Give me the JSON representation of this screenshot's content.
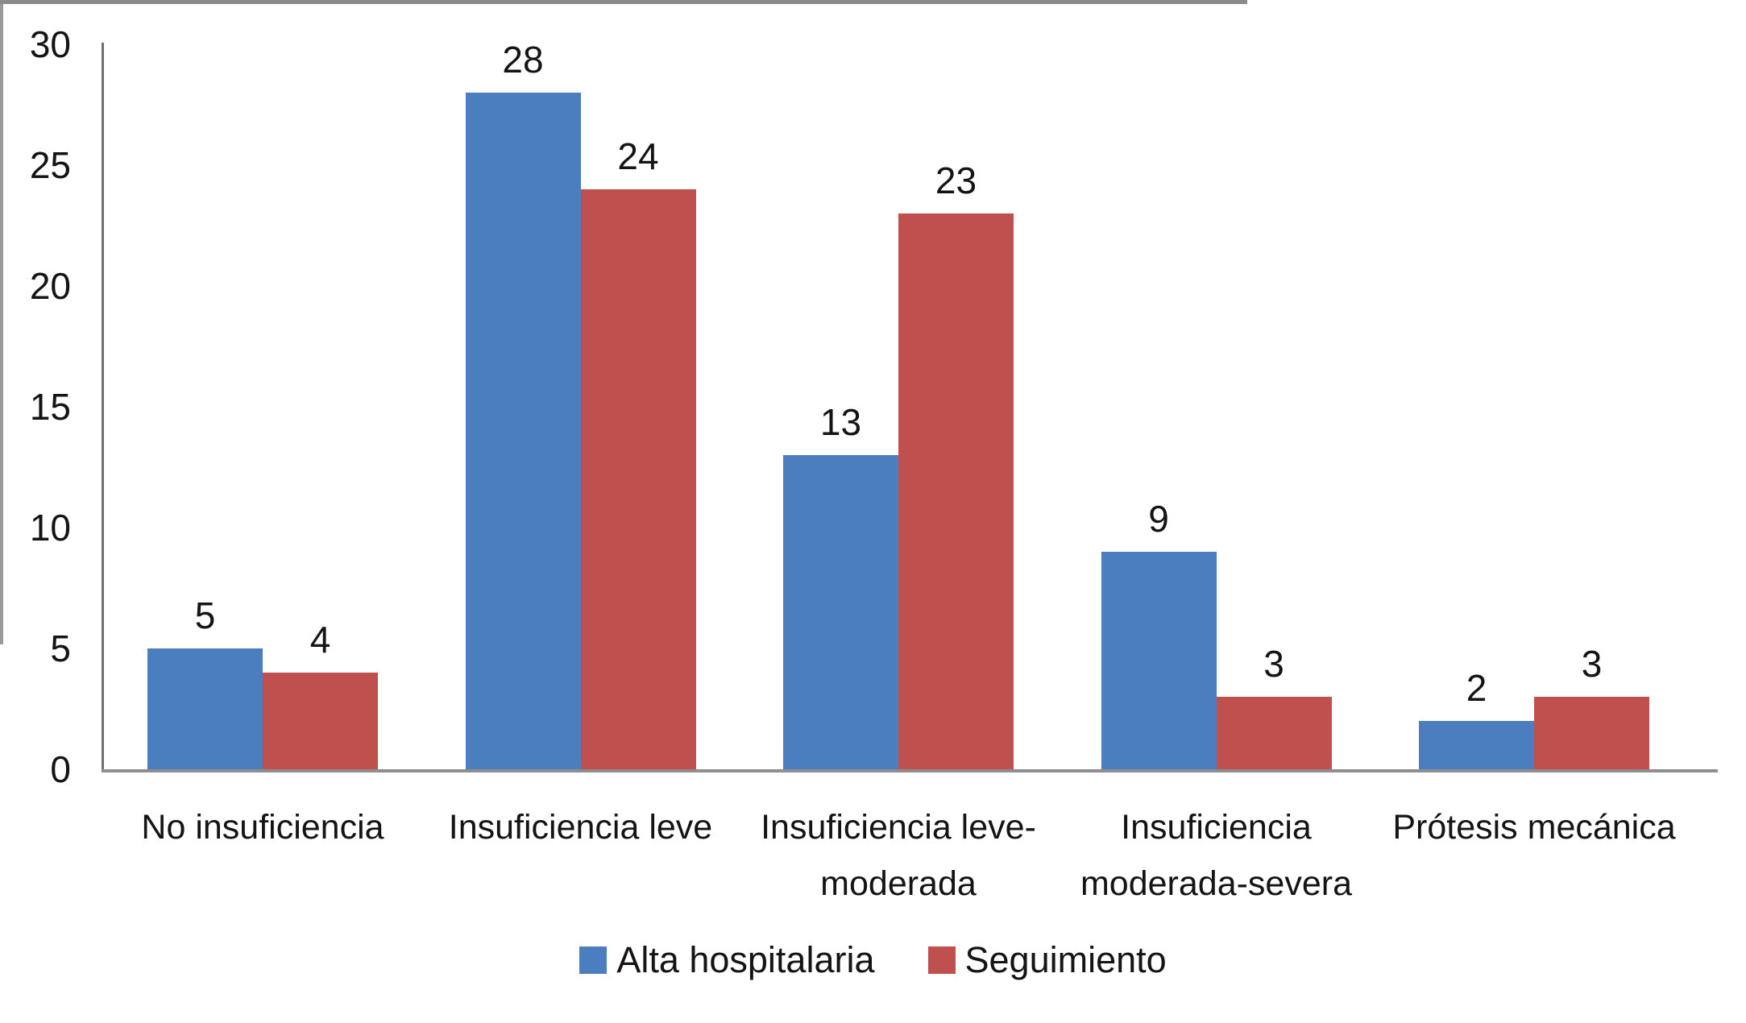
{
  "chart_data": {
    "type": "bar",
    "title": "",
    "xlabel": "",
    "ylabel": "",
    "categories": [
      "No insuficiencia",
      "Insuficiencia leve",
      "Insuficiencia leve-moderada",
      "Insuficiencia moderada-severa",
      "Prótesis mecánica"
    ],
    "category_label_lines": [
      [
        "No insuficiencia"
      ],
      [
        "Insuficiencia leve"
      ],
      [
        "Insuficiencia leve-",
        "moderada"
      ],
      [
        "Insuficiencia",
        "moderada-severa"
      ],
      [
        "Prótesis mecánica"
      ]
    ],
    "series": [
      {
        "name": "Alta hospitalaria",
        "color": "#4A7EBF",
        "values": [
          5,
          28,
          13,
          9,
          2
        ]
      },
      {
        "name": "Seguimiento",
        "color": "#C0504D",
        "values": [
          4,
          24,
          23,
          3,
          3
        ]
      }
    ],
    "ylim": [
      0,
      30
    ],
    "yticks": [
      30,
      25,
      20,
      15,
      10,
      5,
      0
    ],
    "grid": false,
    "data_labels": true,
    "legend_position": "bottom",
    "axis_color": "#6e6e6e",
    "baseline_color": "#8f8f8f",
    "text_color": "#141414"
  }
}
